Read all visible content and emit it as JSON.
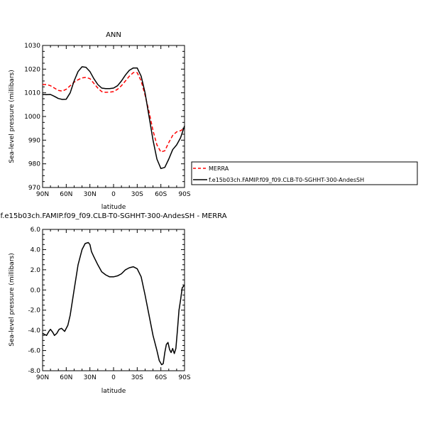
{
  "chart_data": [
    {
      "type": "line",
      "title": "ANN",
      "xlabel": "latitude",
      "ylabel": "Sea-level pressure (millibars)",
      "xlim": [
        90,
        -90
      ],
      "ylim": [
        970,
        1030
      ],
      "x_ticks": [
        90,
        60,
        30,
        0,
        -30,
        -60,
        -90
      ],
      "x_tick_labels": [
        "90N",
        "60N",
        "30N",
        "0",
        "30S",
        "60S",
        "90S"
      ],
      "y_ticks": [
        970,
        980,
        990,
        1000,
        1010,
        1020,
        1030
      ],
      "y_tick_labels": [
        "970",
        "980",
        "990",
        "1000",
        "1010",
        "1020",
        "1030"
      ],
      "series": [
        {
          "name": "MERRA",
          "color": "#ff0000",
          "dash": "dashed",
          "x": [
            90,
            85,
            80,
            75,
            70,
            65,
            60,
            55,
            50,
            45,
            40,
            35,
            30,
            25,
            20,
            15,
            10,
            5,
            0,
            -5,
            -10,
            -15,
            -20,
            -25,
            -30,
            -35,
            -40,
            -45,
            -50,
            -55,
            -60,
            -65,
            -70,
            -75,
            -80,
            -85,
            -90
          ],
          "values": [
            1013.5,
            1013.5,
            1013,
            1012,
            1011,
            1010.7,
            1011.5,
            1013,
            1014.5,
            1015.5,
            1016.3,
            1016.5,
            1016,
            1014,
            1012,
            1010.5,
            1010.2,
            1010.3,
            1010.5,
            1011.5,
            1013,
            1015,
            1017,
            1018.5,
            1018.5,
            1015,
            1009,
            1002,
            994,
            988,
            985,
            985.5,
            989,
            992,
            993.5,
            994,
            995
          ]
        },
        {
          "name": "f.e15b03ch.FAMIP.f09_f09.CLB-T0-SGHHT-300-AndesSH",
          "color": "#000000",
          "dash": "solid",
          "x": [
            90,
            85,
            80,
            75,
            70,
            65,
            60,
            55,
            50,
            45,
            40,
            35,
            30,
            25,
            20,
            15,
            10,
            5,
            0,
            -5,
            -10,
            -15,
            -20,
            -25,
            -30,
            -35,
            -40,
            -45,
            -50,
            -55,
            -60,
            -65,
            -70,
            -75,
            -80,
            -85,
            -90
          ],
          "values": [
            1009.3,
            1009.2,
            1009.3,
            1008.5,
            1007.6,
            1007.2,
            1007.3,
            1010,
            1015,
            1019,
            1021,
            1020.8,
            1019,
            1016,
            1013.5,
            1012,
            1011.8,
            1011.8,
            1012,
            1013,
            1015,
            1017.5,
            1019.5,
            1020.5,
            1020.5,
            1017,
            1010,
            1000,
            990,
            982,
            978,
            978.5,
            982,
            986,
            988,
            991,
            996
          ]
        }
      ]
    },
    {
      "type": "line",
      "title": "f.e15b03ch.FAMIP.f09_f09.CLB-T0-SGHHT-300-AndesSH  -  MERRA",
      "xlabel": "latitude",
      "ylabel": "Sea-level pressure (millibars)",
      "xlim": [
        90,
        -90
      ],
      "ylim": [
        -8,
        6
      ],
      "x_ticks": [
        90,
        60,
        30,
        0,
        -30,
        -60,
        -90
      ],
      "x_tick_labels": [
        "90N",
        "60N",
        "30N",
        "0",
        "30S",
        "60S",
        "90S"
      ],
      "y_ticks": [
        -8,
        -6,
        -4,
        -2,
        0,
        2,
        4,
        6
      ],
      "y_tick_labels": [
        "-8.0",
        "-6.0",
        "-4.0",
        "-2.0",
        "0.0",
        "2.0",
        "4.0",
        "6.0"
      ],
      "series": [
        {
          "color": "#000000",
          "dash": "solid",
          "x": [
            90,
            85,
            82,
            80,
            77,
            75,
            72,
            69,
            66,
            62,
            58,
            55,
            50,
            45,
            40,
            36,
            32,
            30,
            28,
            25,
            20,
            15,
            10,
            5,
            0,
            -5,
            -10,
            -15,
            -20,
            -25,
            -30,
            -35,
            -40,
            -45,
            -50,
            -55,
            -58,
            -61,
            -63,
            -65,
            -67,
            -69,
            -71,
            -73,
            -75,
            -77,
            -79,
            -81,
            -83,
            -85,
            -87,
            -90
          ],
          "values": [
            -4.3,
            -4.5,
            -4.1,
            -3.9,
            -4.2,
            -4.5,
            -4.3,
            -3.9,
            -3.8,
            -4.1,
            -3.5,
            -2.5,
            0,
            2.5,
            4.0,
            4.6,
            4.7,
            4.5,
            3.8,
            3.3,
            2.5,
            1.8,
            1.5,
            1.3,
            1.3,
            1.4,
            1.6,
            2.0,
            2.2,
            2.3,
            2.1,
            1.3,
            -0.5,
            -2.5,
            -4.5,
            -6.0,
            -7.0,
            -7.4,
            -7.3,
            -6.2,
            -5.4,
            -5.2,
            -5.9,
            -6.2,
            -5.8,
            -6.3,
            -5.8,
            -4.0,
            -2.0,
            -1.0,
            0.2,
            0.5
          ]
        }
      ]
    }
  ],
  "legend": {
    "entries": [
      "MERRA",
      "f.e15b03ch.FAMIP.f09_f09.CLB-T0-SGHHT-300-AndesSH"
    ]
  }
}
